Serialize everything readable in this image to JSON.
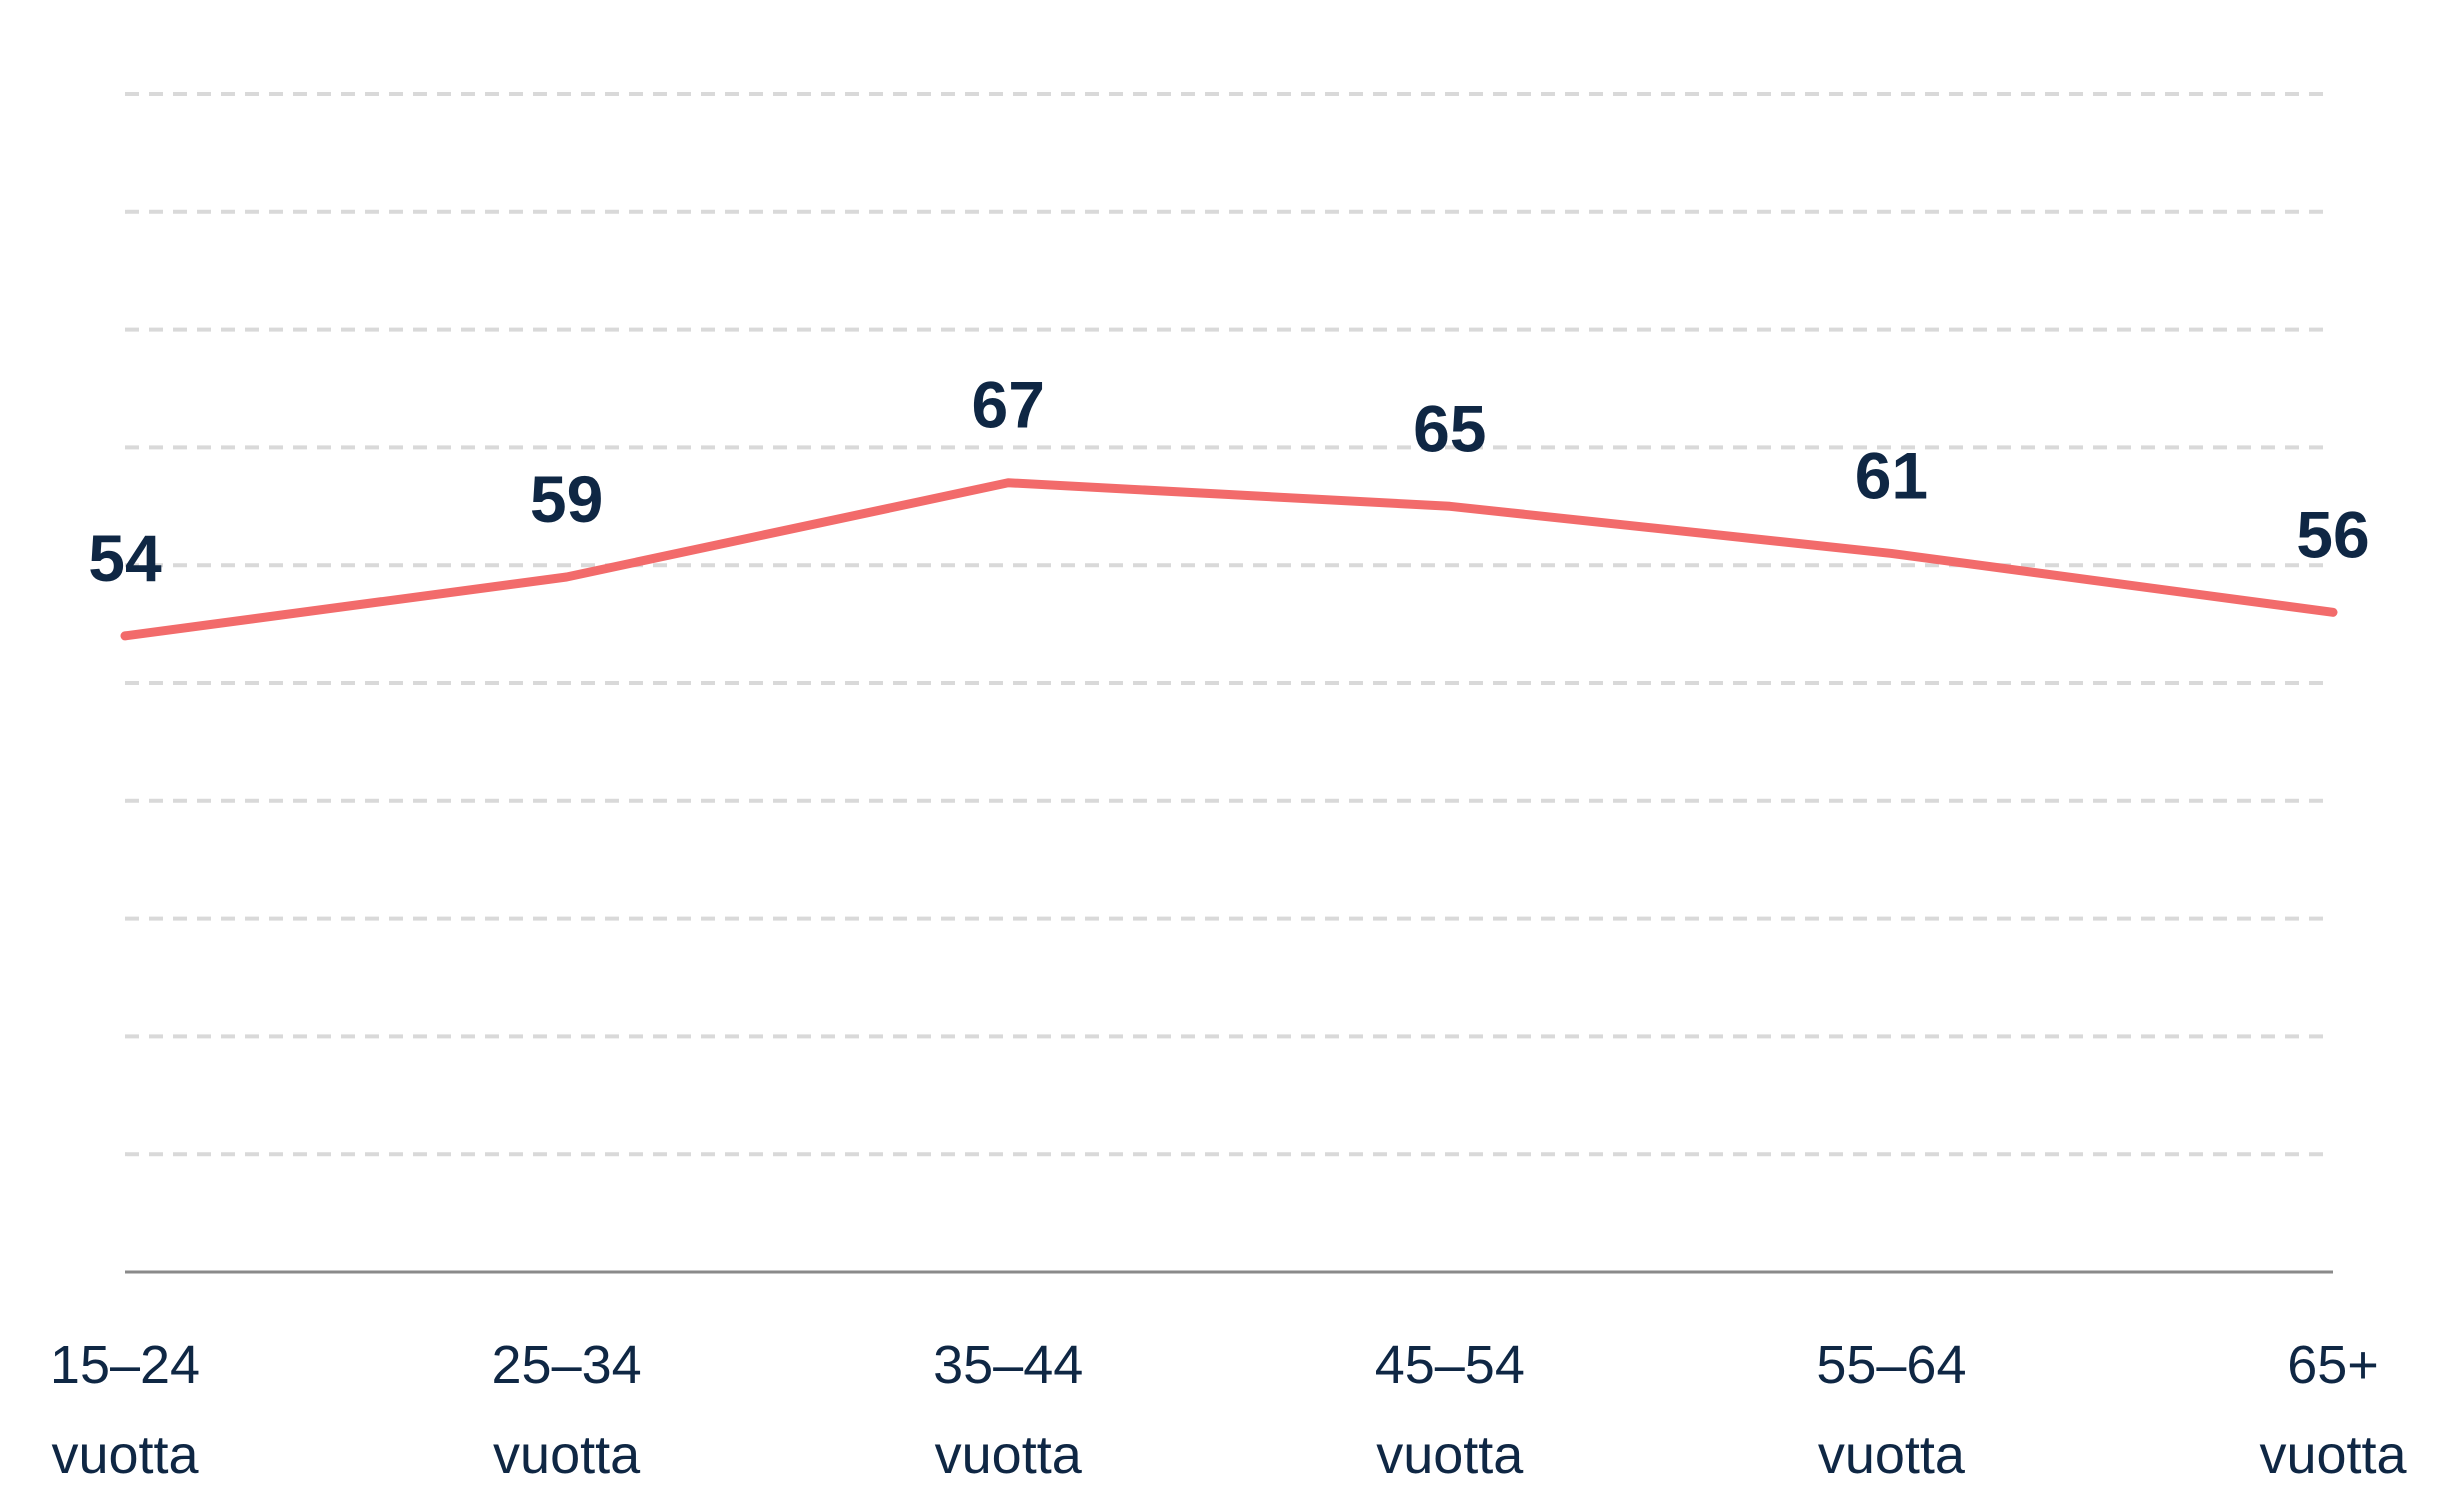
{
  "chart_data": {
    "type": "line",
    "title": "",
    "xlabel": "",
    "ylabel": "",
    "categories": [
      [
        "15–24",
        "vuotta"
      ],
      [
        "25–34",
        "vuotta"
      ],
      [
        "35–44",
        "vuotta"
      ],
      [
        "45–54",
        "vuotta"
      ],
      [
        "55–64",
        "vuotta"
      ],
      [
        "65+",
        "vuotta"
      ]
    ],
    "series": [
      {
        "values": [
          54,
          59,
          67,
          65,
          61,
          56
        ]
      }
    ],
    "ylim": [
      0,
      100
    ],
    "gridlines": [
      10,
      20,
      30,
      40,
      50,
      60,
      70,
      80,
      90,
      100
    ],
    "grid": true,
    "legend": "none",
    "data_labels": true
  },
  "colors": {
    "line": "#f26b6b",
    "text": "#0f2744",
    "grid": "#d9d9d9",
    "axis": "#8a8a8a"
  }
}
